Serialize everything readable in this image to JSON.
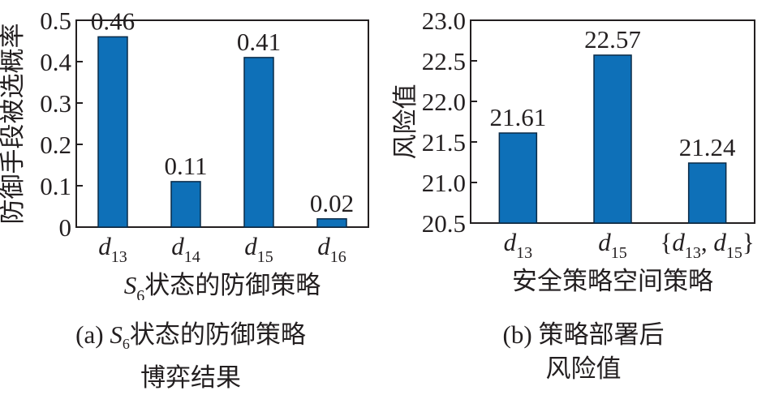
{
  "colors": {
    "bar": "#0e70b8",
    "bar_stroke": "#0a2a47",
    "axis": "#231f20"
  },
  "chart_data": [
    {
      "id": "a",
      "type": "bar",
      "categories": [
        {
          "base": "d",
          "sub": "13"
        },
        {
          "base": "d",
          "sub": "14"
        },
        {
          "base": "d",
          "sub": "15"
        },
        {
          "base": "d",
          "sub": "16"
        }
      ],
      "values": [
        0.46,
        0.11,
        0.41,
        0.02
      ],
      "value_labels": [
        "0.46",
        "0.11",
        "0.41",
        "0.02"
      ],
      "ylim": [
        0,
        0.5
      ],
      "yticks": [
        0,
        0.1,
        0.2,
        0.3,
        0.4,
        0.5
      ],
      "ytick_labels": [
        "0",
        "0.1",
        "0.2",
        "0.3",
        "0.4",
        "0.5"
      ],
      "ylabel": "防御手段被选概率",
      "xlabel": {
        "base": "S",
        "sub": "6",
        "rest": "状态的防御策略"
      },
      "caption": {
        "prefix": "(a) ",
        "base": "S",
        "sub": "6",
        "rest": "状态的防御策略",
        "line2": "博弈结果"
      },
      "grid": false
    },
    {
      "id": "b",
      "type": "bar",
      "categories": [
        {
          "base": "d",
          "sub": "13"
        },
        {
          "base": "d",
          "sub": "15"
        },
        {
          "set": true,
          "items": [
            {
              "base": "d",
              "sub": "13"
            },
            {
              "base": "d",
              "sub": "15"
            }
          ]
        }
      ],
      "values": [
        21.61,
        22.57,
        21.24
      ],
      "value_labels": [
        "21.61",
        "22.57",
        "21.24"
      ],
      "ylim": [
        20.5,
        23.0
      ],
      "yticks": [
        20.5,
        21.0,
        21.5,
        22.0,
        22.5,
        23.0
      ],
      "ytick_labels": [
        "20.5",
        "21.0",
        "21.5",
        "22.0",
        "22.5",
        "23.0"
      ],
      "ylabel": "风险值",
      "xlabel": {
        "rest": "安全策略空间策略"
      },
      "caption": {
        "prefix": "(b) ",
        "rest": "策略部署后",
        "line2": "风险值"
      },
      "grid": false
    }
  ]
}
